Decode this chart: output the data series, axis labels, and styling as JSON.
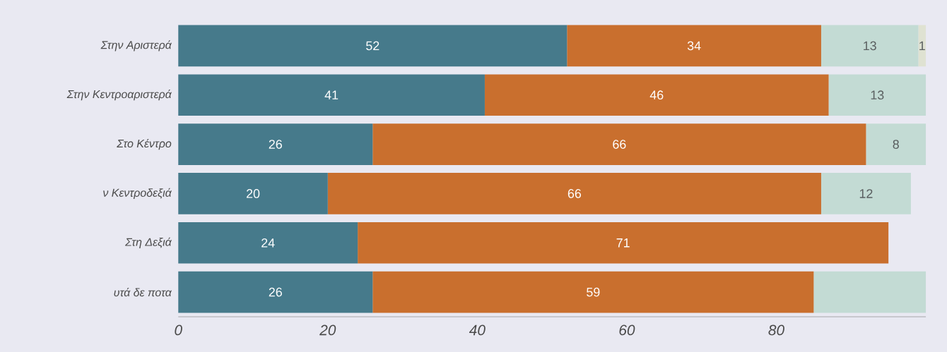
{
  "chart_data": {
    "type": "bar",
    "orientation": "horizontal",
    "stacked": true,
    "categories": [
      "Στην Αριστερά",
      "Στην Κεντροαριστερά",
      "Στο Κέντρο",
      "ν Κεντροδεξιά",
      "Στη Δεξιά",
      "υτά δε ποτα"
    ],
    "series": [
      {
        "color": "#467a8b",
        "values": [
          52,
          41,
          26,
          20,
          24,
          26
        ],
        "value_labels": [
          "52",
          "41",
          "26",
          "20",
          "24",
          "26"
        ]
      },
      {
        "color": "#c96f2e",
        "values": [
          34,
          46,
          66,
          66,
          71,
          59
        ],
        "value_labels": [
          "34",
          "46",
          "66",
          "66",
          "71",
          "59"
        ]
      },
      {
        "color": "#c3dbd4",
        "values": [
          13,
          13,
          8,
          12,
          null,
          15
        ],
        "value_labels": [
          "13",
          "13",
          "8",
          "12",
          null,
          null
        ]
      },
      {
        "color": "#dfe2d2",
        "values": [
          1,
          null,
          null,
          null,
          null,
          null
        ],
        "value_labels": [
          "1",
          null,
          null,
          null,
          null,
          null
        ]
      }
    ],
    "xlim": [
      0,
      100
    ],
    "xticks": [
      0,
      20,
      40,
      60,
      80
    ]
  }
}
